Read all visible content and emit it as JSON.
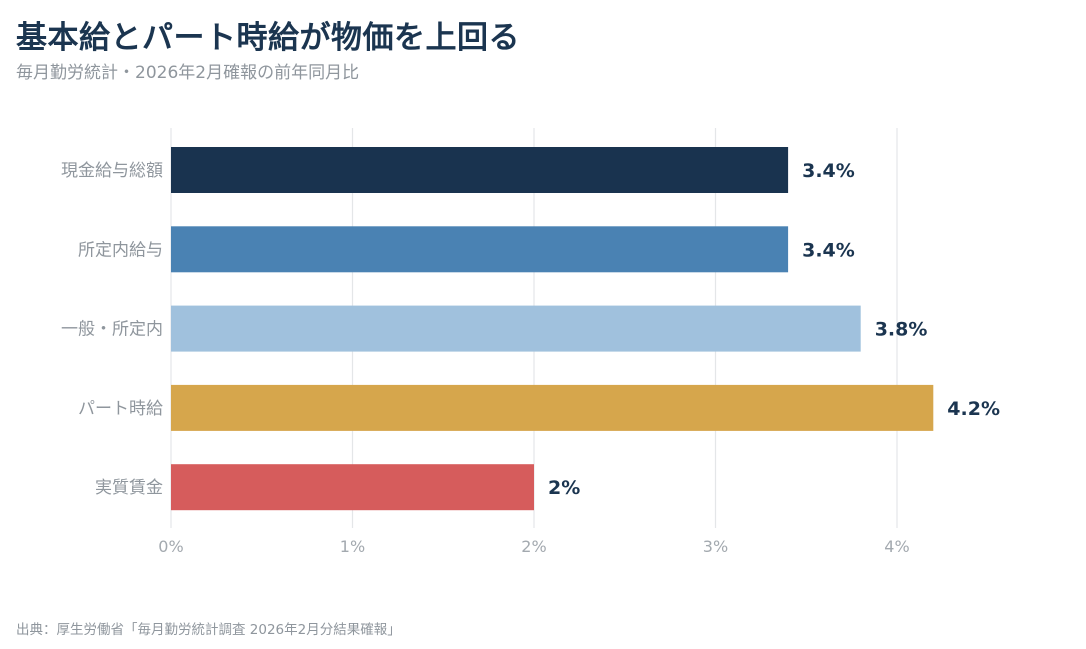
{
  "title": "基本給とパート時給が物価を上回る",
  "subtitle": "毎月勤労統計・2026年2月確報の前年同月比",
  "source": "出典：厚生労働省「毎月勤労統計調査 2026年2月分結果確報」",
  "chart_data": {
    "type": "bar",
    "orientation": "horizontal",
    "categories": [
      "現金給与総額",
      "所定内給与",
      "一般・所定内",
      "パート時給",
      "実質賃金"
    ],
    "values": [
      3.4,
      3.4,
      3.8,
      4.2,
      2
    ],
    "value_labels": [
      "3.4%",
      "3.4%",
      "3.8%",
      "4.2%",
      "2%"
    ],
    "colors": [
      "#19334f",
      "#4a82b3",
      "#a0c1dd",
      "#d6a64c",
      "#d65c5c"
    ],
    "xlim": [
      0,
      4.2
    ],
    "xticks": [
      0,
      1,
      2,
      3,
      4
    ],
    "xtick_labels": [
      "0%",
      "1%",
      "2%",
      "3%",
      "4%"
    ],
    "grid": true,
    "title": "基本給とパート時給が物価を上回る",
    "subtitle": "毎月勤労統計・2026年2月確報の前年同月比"
  }
}
